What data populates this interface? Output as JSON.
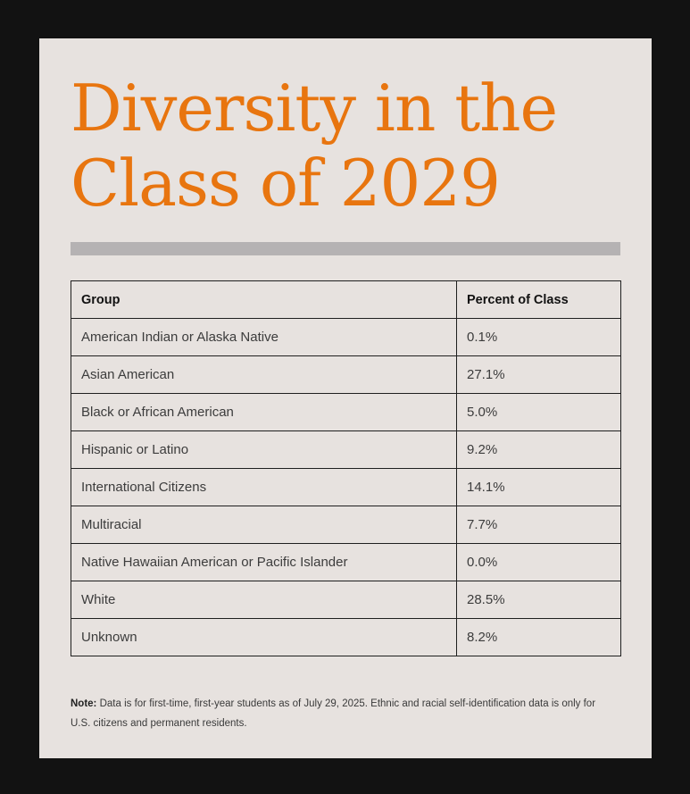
{
  "title": {
    "line1": "Diversity in the",
    "line2": "Class of 2029"
  },
  "table": {
    "headers": [
      "Group",
      "Percent of Class"
    ],
    "rows": [
      {
        "group": "American Indian or Alaska Native",
        "percent": "0.1%"
      },
      {
        "group": "Asian American",
        "percent": "27.1%"
      },
      {
        "group": "Black or African American",
        "percent": "5.0%"
      },
      {
        "group": "Hispanic or Latino",
        "percent": "9.2%"
      },
      {
        "group": "International Citizens",
        "percent": "14.1%"
      },
      {
        "group": "Multiracial",
        "percent": "7.7%"
      },
      {
        "group": "Native Hawaiian American or Pacific Islander",
        "percent": "0.0%"
      },
      {
        "group": "White",
        "percent": "28.5%"
      },
      {
        "group": "Unknown",
        "percent": "8.2%"
      }
    ]
  },
  "note": {
    "label": "Note:",
    "text": " Data is for first-time, first-year students as of July 29, 2025. Ethnic and racial self-identification data is only for U.S. citizens and permanent residents."
  },
  "colors": {
    "title": "#e8750f",
    "card": "#e7e2df",
    "background": "#121212",
    "rule": "#b5b2b3"
  }
}
